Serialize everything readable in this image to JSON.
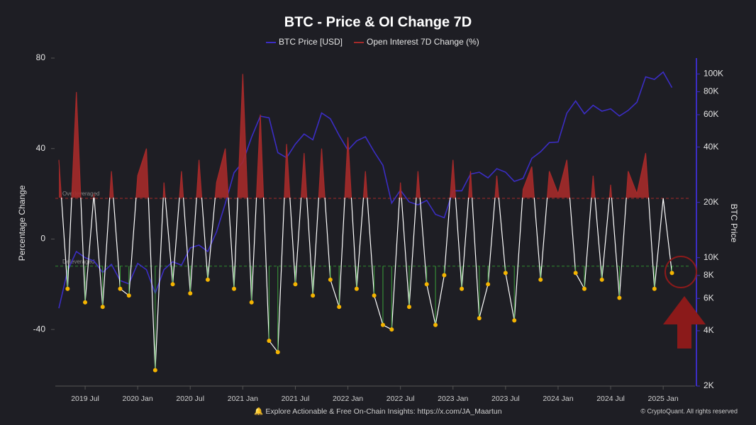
{
  "chart_data": {
    "type": "line",
    "title": "BTC - Price & OI Change 7D",
    "x": [
      "2019 Apr",
      "2019 May",
      "2019 Jun",
      "2019 Jul",
      "2019 Aug",
      "2019 Sep",
      "2019 Oct",
      "2019 Nov",
      "2019 Dec",
      "2020 Jan",
      "2020 Feb",
      "2020 Mar",
      "2020 Apr",
      "2020 May",
      "2020 Jun",
      "2020 Jul",
      "2020 Aug",
      "2020 Sep",
      "2020 Oct",
      "2020 Nov",
      "2020 Dec",
      "2021 Jan",
      "2021 Feb",
      "2021 Mar",
      "2021 Apr",
      "2021 May",
      "2021 Jun",
      "2021 Jul",
      "2021 Aug",
      "2021 Sep",
      "2021 Oct",
      "2021 Nov",
      "2021 Dec",
      "2022 Jan",
      "2022 Feb",
      "2022 Mar",
      "2022 Apr",
      "2022 May",
      "2022 Jun",
      "2022 Jul",
      "2022 Aug",
      "2022 Sep",
      "2022 Oct",
      "2022 Nov",
      "2022 Dec",
      "2023 Jan",
      "2023 Feb",
      "2023 Mar",
      "2023 Apr",
      "2023 May",
      "2023 Jun",
      "2023 Jul",
      "2023 Aug",
      "2023 Sep",
      "2023 Oct",
      "2023 Nov",
      "2023 Dec",
      "2024 Jan",
      "2024 Feb",
      "2024 Mar",
      "2024 Apr",
      "2024 May",
      "2024 Jun",
      "2024 Jul",
      "2024 Aug",
      "2024 Sep",
      "2024 Oct",
      "2024 Nov",
      "2024 Dec",
      "2025 Jan",
      "2025 Feb"
    ],
    "xticks": [
      "2019 Jul",
      "2020 Jan",
      "2020 Jul",
      "2021 Jan",
      "2021 Jul",
      "2022 Jan",
      "2022 Jul",
      "2023 Jan",
      "2023 Jul",
      "2024 Jan",
      "2024 Jul",
      "2025 Jan"
    ],
    "series": [
      {
        "name": "BTC Price [USD]",
        "color": "#3b2dc4",
        "axis": "y2",
        "values": [
          5300,
          8500,
          10800,
          10000,
          9600,
          8300,
          9200,
          7500,
          7200,
          9300,
          8600,
          6400,
          8600,
          9500,
          9100,
          11300,
          11700,
          10800,
          13800,
          19700,
          29000,
          33100,
          45200,
          58900,
          57700,
          37300,
          35000,
          41500,
          47100,
          43800,
          61300,
          57000,
          46300,
          38500,
          43200,
          45500,
          37700,
          31800,
          19800,
          23300,
          20100,
          19400,
          20500,
          17200,
          16500,
          23100,
          23100,
          28500,
          29200,
          27200,
          30500,
          29200,
          26000,
          27000,
          34700,
          37700,
          42300,
          42600,
          61200,
          71300,
          60700,
          67500,
          62700,
          64600,
          59000,
          63300,
          70200,
          96400,
          93400,
          102400,
          84300
        ]
      },
      {
        "name": "Open Interest 7D Change (%)",
        "color": "#a52a2a",
        "values": [
          35,
          -22,
          65,
          -28,
          20,
          -30,
          30,
          -22,
          -25,
          28,
          40,
          -58,
          25,
          -20,
          30,
          -24,
          35,
          -18,
          25,
          40,
          -22,
          73,
          -28,
          55,
          -45,
          -50,
          42,
          -20,
          38,
          -25,
          40,
          -18,
          -30,
          45,
          -22,
          30,
          -25,
          -38,
          -40,
          25,
          -30,
          30,
          -20,
          -38,
          -16,
          35,
          -22,
          30,
          -35,
          -20,
          28,
          -15,
          -36,
          22,
          32,
          -18,
          30,
          20,
          35,
          -15,
          -22,
          28,
          -18,
          24,
          -26,
          30,
          20,
          38,
          -22,
          18,
          -15
        ]
      }
    ],
    "thresholds": [
      {
        "value": 18,
        "label": "Overleveraged",
        "color": "#a52a2a"
      },
      {
        "value": -12,
        "label": "Deleveraged",
        "color": "#2e8b2e"
      }
    ],
    "ylabel": "Percentage Change",
    "y2label": "BTC Price",
    "ylim": [
      -65,
      80
    ],
    "yticks": [
      80,
      40,
      0,
      -40
    ],
    "y2lim": [
      2000,
      122000
    ],
    "log_y2": true,
    "y2ticks": [
      {
        "value": 100000,
        "label": "100K"
      },
      {
        "value": 80000,
        "label": "80K"
      },
      {
        "value": 60000,
        "label": "60K"
      },
      {
        "value": 40000,
        "label": "40K"
      },
      {
        "value": 20000,
        "label": "20K"
      },
      {
        "value": 10000,
        "label": "10K"
      },
      {
        "value": 8000,
        "label": "8K"
      },
      {
        "value": 6000,
        "label": "6K"
      },
      {
        "value": 4000,
        "label": "4K"
      },
      {
        "value": 2000,
        "label": "2K"
      }
    ],
    "footer": "🔔 Explore Actionable & Free On-Chain Insights: https://x.com/JA_Maartun",
    "credit": "© CryptoQuant. All rights reserved"
  }
}
